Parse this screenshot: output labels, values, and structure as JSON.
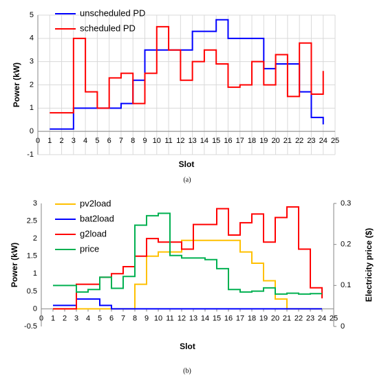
{
  "chart_data": [
    {
      "type": "line",
      "step": true,
      "caption": "(a)",
      "xlabel": "Slot",
      "ylabel": "Power (kW)",
      "x": [
        1,
        2,
        3,
        4,
        5,
        6,
        7,
        8,
        9,
        10,
        11,
        12,
        13,
        14,
        15,
        16,
        17,
        18,
        19,
        20,
        21,
        22,
        23,
        24
      ],
      "series": [
        {
          "name": "unscheduled PD",
          "color": "#0000ff",
          "values": [
            0.1,
            0.1,
            1.0,
            1.0,
            1.0,
            1.0,
            1.2,
            2.2,
            3.5,
            3.5,
            3.5,
            3.5,
            4.3,
            4.3,
            4.8,
            4.0,
            4.0,
            4.0,
            2.7,
            2.9,
            2.9,
            1.7,
            0.6,
            0.3
          ]
        },
        {
          "name": "scheduled PD",
          "color": "#ff0000",
          "values": [
            0.8,
            0.8,
            4.0,
            1.7,
            1.0,
            2.3,
            2.5,
            1.2,
            2.5,
            4.5,
            3.5,
            2.2,
            3.0,
            3.5,
            2.9,
            1.9,
            2.0,
            3.0,
            2.0,
            3.3,
            1.5,
            3.8,
            1.6,
            2.6
          ]
        }
      ],
      "xlim": [
        0,
        25
      ],
      "xticks": [
        0,
        1,
        2,
        3,
        4,
        5,
        6,
        7,
        8,
        9,
        10,
        11,
        12,
        13,
        14,
        15,
        16,
        17,
        18,
        19,
        20,
        21,
        22,
        23,
        24,
        25
      ],
      "ylim": [
        -1,
        5
      ],
      "yticks": [
        -1,
        0,
        1,
        2,
        3,
        4,
        5
      ],
      "grid": true,
      "legend": "upper left"
    },
    {
      "type": "line",
      "step": true,
      "caption": "(b)",
      "xlabel": "Slot",
      "ylabel": "Power (kW)",
      "y2label": "Electricity price ($)",
      "x": [
        1,
        2,
        3,
        4,
        5,
        6,
        7,
        8,
        9,
        10,
        11,
        12,
        13,
        14,
        15,
        16,
        17,
        18,
        19,
        20,
        21,
        22,
        23,
        24
      ],
      "series": [
        {
          "name": "pv2load",
          "color": "#ffc000",
          "values": [
            0,
            0,
            0,
            0,
            0,
            0,
            0,
            0.7,
            1.5,
            1.62,
            1.62,
            1.95,
            1.95,
            1.95,
            1.95,
            1.95,
            1.62,
            1.3,
            0.8,
            0.28,
            0,
            0,
            0,
            0
          ]
        },
        {
          "name": "bat2load",
          "color": "#0000ff",
          "values": [
            0.1,
            0.1,
            0.28,
            0.28,
            0.1,
            0,
            0,
            0,
            0,
            0,
            0,
            0,
            0,
            0,
            0,
            0,
            0,
            0,
            0,
            0,
            0,
            0,
            0,
            0
          ]
        },
        {
          "name": "g2load",
          "color": "#ff0000",
          "values": [
            0,
            0,
            0.7,
            0.7,
            0.9,
            1.0,
            1.2,
            1.5,
            2.0,
            1.9,
            1.9,
            1.7,
            2.4,
            2.4,
            2.85,
            2.1,
            2.45,
            2.7,
            1.9,
            2.6,
            2.9,
            1.7,
            0.6,
            0.3
          ]
        },
        {
          "name": "price",
          "color": "#00b050",
          "axis": "y2",
          "values": [
            0.1,
            0.1,
            0.084,
            0.09,
            0.12,
            0.093,
            0.122,
            0.247,
            0.27,
            0.276,
            0.173,
            0.167,
            0.167,
            0.163,
            0.141,
            0.09,
            0.084,
            0.086,
            0.094,
            0.079,
            0.081,
            0.079,
            0.08,
            0.08
          ]
        }
      ],
      "xlim": [
        0,
        25
      ],
      "xticks": [
        0,
        1,
        2,
        3,
        4,
        5,
        6,
        7,
        8,
        9,
        10,
        11,
        12,
        13,
        14,
        15,
        16,
        17,
        18,
        19,
        20,
        21,
        22,
        23,
        24,
        25
      ],
      "ylim": [
        -0.5,
        3
      ],
      "yticks": [
        -0.5,
        0,
        0.5,
        1,
        1.5,
        2,
        2.5,
        3
      ],
      "y2lim": [
        0,
        0.3
      ],
      "y2ticks": [
        0,
        0.1,
        0.2,
        0.3
      ],
      "grid": false,
      "legend": "upper left"
    }
  ]
}
